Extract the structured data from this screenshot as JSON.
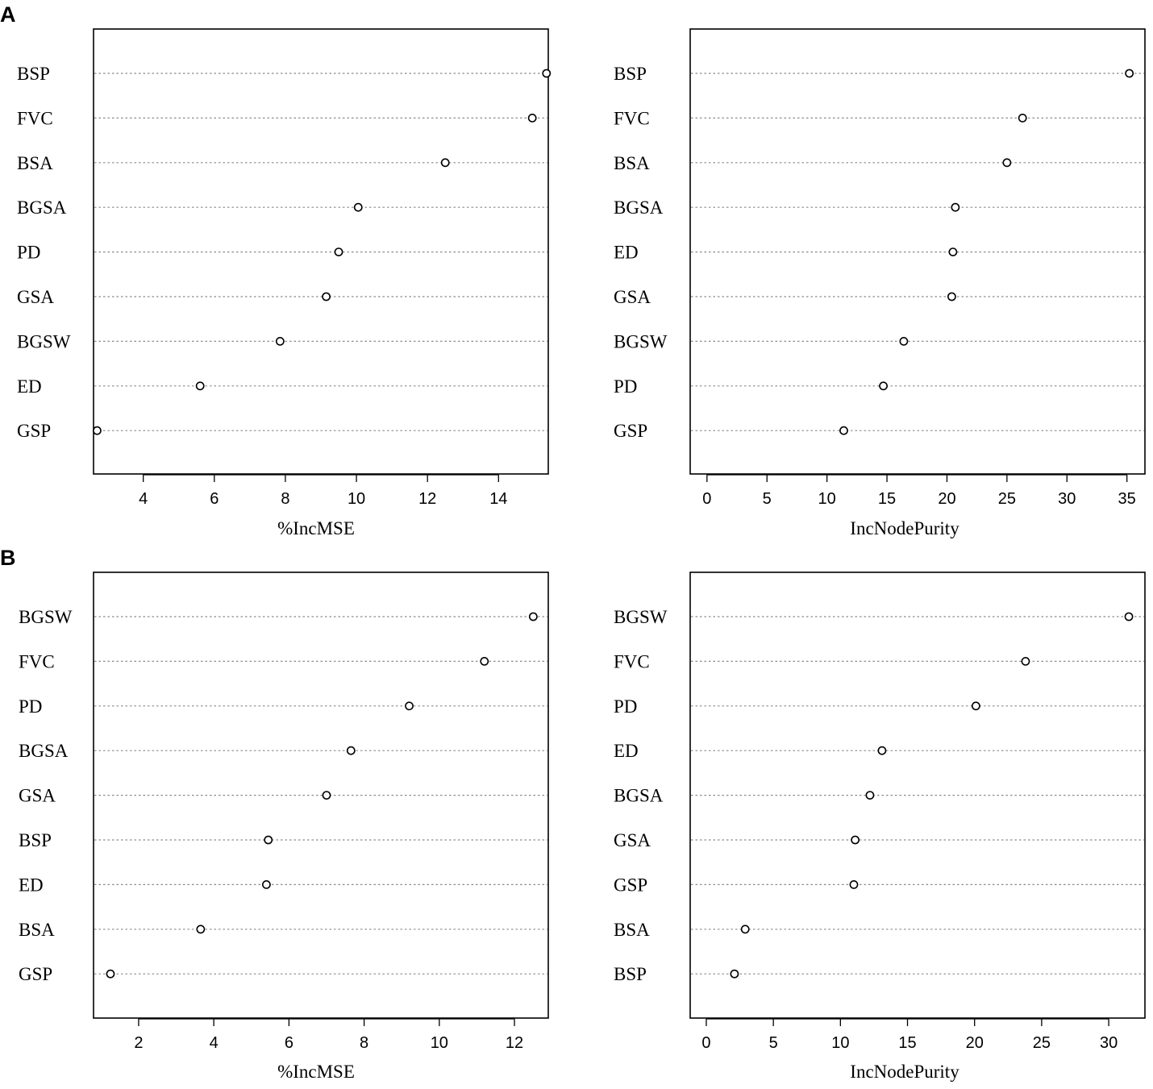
{
  "panel_labels": [
    "A",
    "B"
  ],
  "chart_data": [
    {
      "type": "scatter",
      "panel": "A",
      "xlabel": "%IncMSE",
      "xlim": [
        2.6,
        15.4
      ],
      "xticks": [
        4,
        6,
        8,
        10,
        12,
        14
      ],
      "categories": [
        "BSP",
        "FVC",
        "BSA",
        "BGSA",
        "PD",
        "GSA",
        "BGSW",
        "ED",
        "GSP"
      ],
      "values": [
        15.35,
        14.95,
        12.5,
        10.05,
        9.5,
        9.15,
        7.85,
        5.6,
        2.7
      ]
    },
    {
      "type": "scatter",
      "panel": "A",
      "xlabel": "IncNodePurity",
      "xlim": [
        -1.4,
        36.5
      ],
      "xticks": [
        0,
        5,
        10,
        15,
        20,
        25,
        30,
        35
      ],
      "categories": [
        "BSP",
        "FVC",
        "BSA",
        "BGSA",
        "ED",
        "GSA",
        "BGSW",
        "PD",
        "GSP"
      ],
      "values": [
        35.2,
        26.3,
        25.0,
        20.7,
        20.5,
        20.4,
        16.4,
        14.7,
        11.4
      ]
    },
    {
      "type": "scatter",
      "panel": "B",
      "xlabel": "%IncMSE",
      "xlim": [
        0.8,
        12.9
      ],
      "xticks": [
        2,
        4,
        6,
        8,
        10,
        12
      ],
      "categories": [
        "BGSW",
        "FVC",
        "PD",
        "BGSA",
        "GSA",
        "BSP",
        "ED",
        "BSA",
        "GSP"
      ],
      "values": [
        12.5,
        11.2,
        9.2,
        7.65,
        7.0,
        5.45,
        5.4,
        3.65,
        1.25
      ]
    },
    {
      "type": "scatter",
      "panel": "B",
      "xlabel": "IncNodePurity",
      "xlim": [
        -1.2,
        32.7
      ],
      "xticks": [
        0,
        5,
        10,
        15,
        20,
        25,
        30
      ],
      "categories": [
        "BGSW",
        "FVC",
        "PD",
        "ED",
        "BGSA",
        "GSA",
        "GSP",
        "BSA",
        "BSP"
      ],
      "values": [
        31.5,
        23.8,
        20.1,
        13.1,
        12.2,
        11.1,
        11.0,
        2.9,
        2.1
      ]
    }
  ]
}
